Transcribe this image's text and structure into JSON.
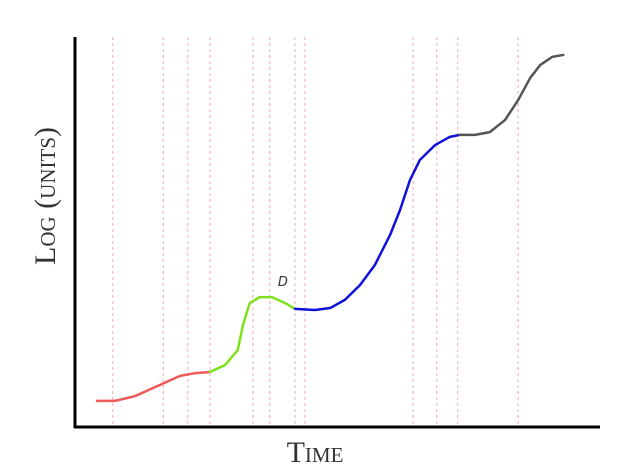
{
  "chart_data": {
    "type": "line",
    "xlabel": "Time",
    "ylabel": "Log (units)",
    "xlim": [
      0,
      100
    ],
    "ylim": [
      0,
      100
    ],
    "vlines": [
      7.2,
      16.8,
      21.5,
      25.7,
      33.9,
      37.1,
      41.9,
      43.8,
      64.4,
      68.9,
      72.9,
      84.4
    ],
    "vline_color": "#f4a6b8",
    "series": [
      {
        "color": "#ee5a5a",
        "x": [
          4.2,
          7.6,
          11.4,
          16.2,
          20.0,
          22.9,
          25.7
        ],
        "values": [
          6.7,
          6.7,
          7.9,
          10.8,
          13.1,
          13.8,
          14.1
        ]
      },
      {
        "color": "#7ee21a",
        "x": [
          25.7,
          28.6,
          31.0,
          32.0,
          33.3,
          35.2,
          37.5,
          40.0,
          41.9
        ],
        "values": [
          14.1,
          15.9,
          19.7,
          26.2,
          31.8,
          33.3,
          33.3,
          31.8,
          30.3
        ]
      },
      {
        "color": "#1010d8",
        "x": [
          41.9,
          45.7,
          48.6,
          51.4,
          54.3,
          57.1,
          60.0,
          61.9,
          63.8,
          65.7,
          68.6,
          71.4,
          73.3
        ],
        "values": [
          30.3,
          30.0,
          30.5,
          32.6,
          36.4,
          41.5,
          49.2,
          55.6,
          63.3,
          68.5,
          72.3,
          74.4,
          74.9
        ]
      },
      {
        "color": "#555555",
        "x": [
          73.3,
          76.2,
          79.0,
          81.9,
          84.4,
          86.7,
          88.6,
          90.9,
          93.0
        ],
        "values": [
          74.9,
          74.9,
          75.6,
          78.7,
          83.8,
          89.5,
          92.8,
          94.9,
          95.4
        ]
      }
    ],
    "annotations": [
      {
        "text": "D",
        "x": 39.6,
        "y": 36.2
      }
    ]
  }
}
